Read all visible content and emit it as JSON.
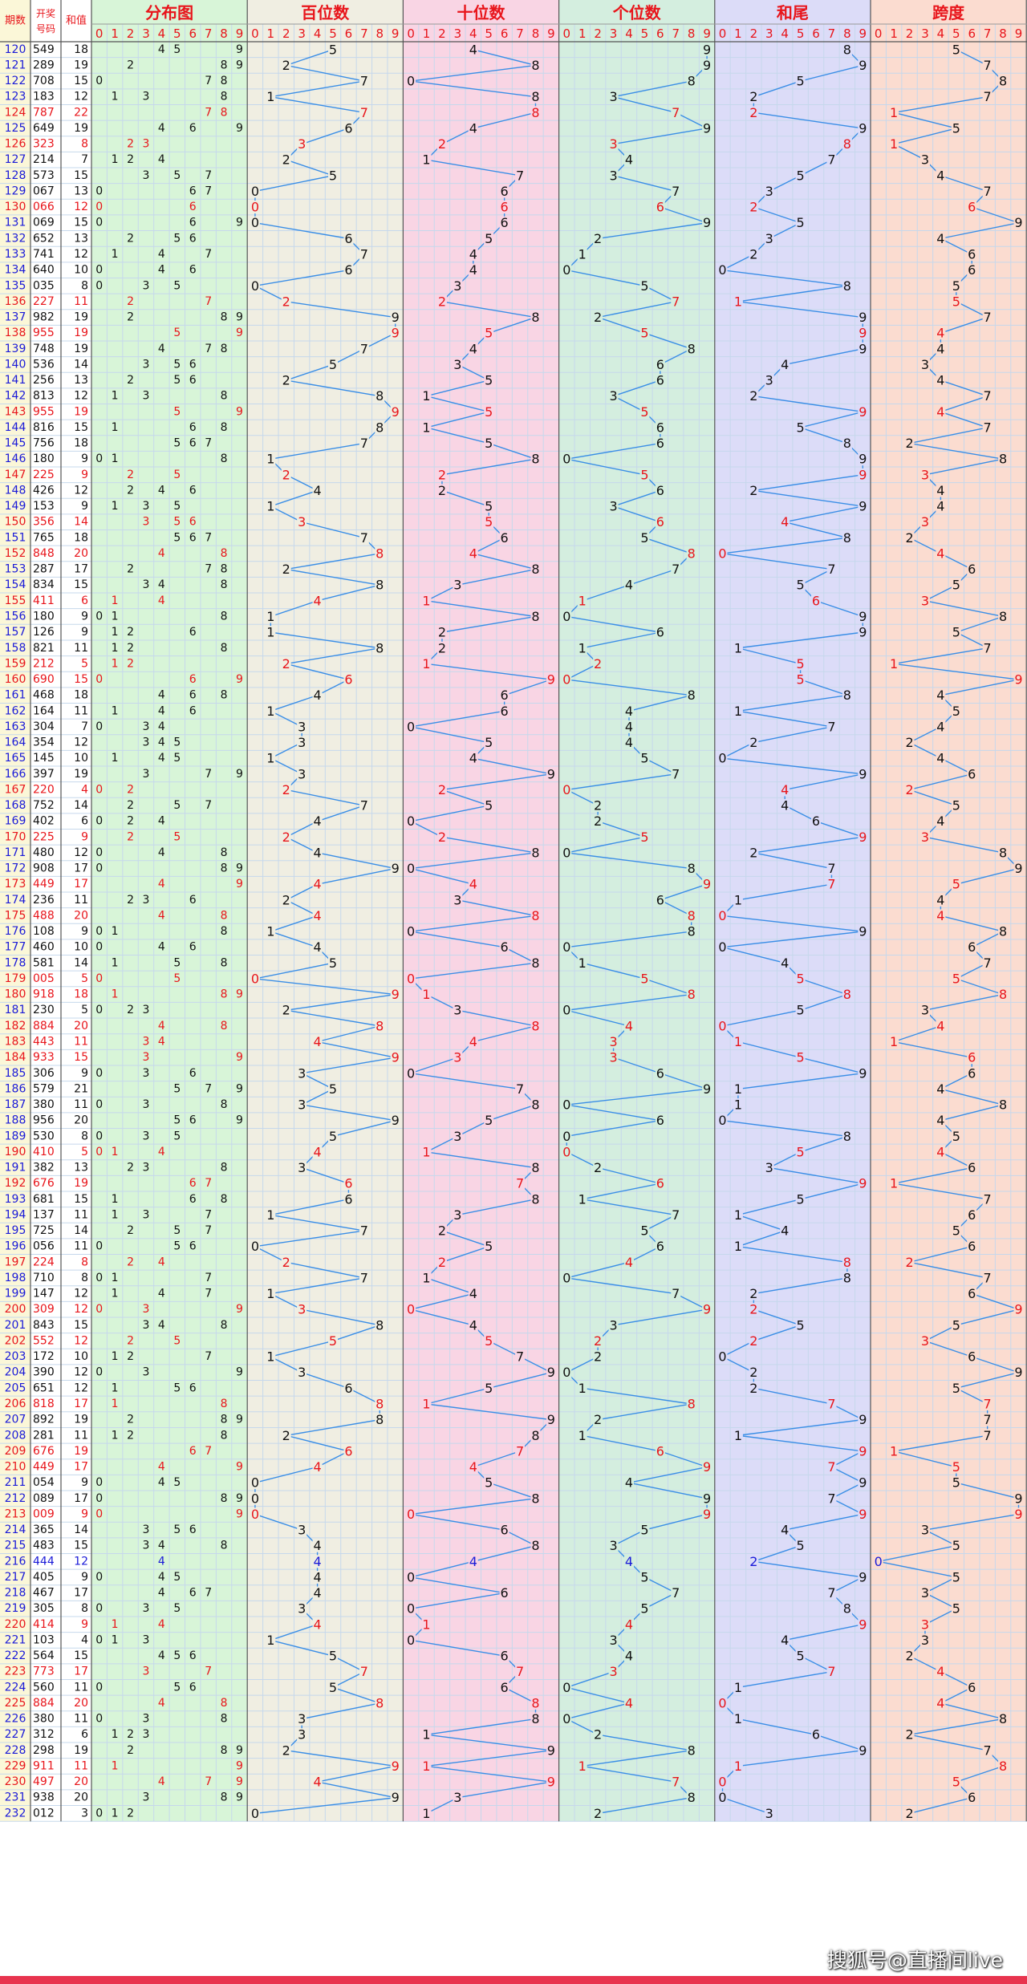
{
  "header": {
    "col_period": "期数",
    "col_number": "开奖号码",
    "col_sum": "和值",
    "sections": [
      "分布图",
      "百位数",
      "十位数",
      "个位数",
      "和尾",
      "跨度"
    ],
    "digits": [
      "0",
      "1",
      "2",
      "3",
      "4",
      "5",
      "6",
      "7",
      "8",
      "9"
    ]
  },
  "watermark": "搜狐号@直播间live",
  "colors": {
    "red": "#e8151b",
    "blue": "#1a1ad8",
    "line": "#3a8ee6",
    "dist_bg": "#d8f5d8",
    "hundreds_bg": "#f0eee2",
    "tens_bg": "#f9d5e4",
    "units_bg": "#d4eedf",
    "sumtail_bg": "#dcdcf8",
    "span_bg": "#fbdcd0",
    "period_bg": "#fbf7d8",
    "grid": "#c6d8ec",
    "bottom_bar": "#e8344e"
  },
  "chart_data": {
    "type": "table",
    "periods": [
      120,
      121,
      122,
      123,
      124,
      125,
      126,
      127,
      128,
      129,
      130,
      131,
      132,
      133,
      134,
      135,
      136,
      137,
      138,
      139,
      140,
      141,
      142,
      143,
      144,
      145,
      146,
      147,
      148,
      149,
      150,
      151,
      152,
      153,
      154,
      155,
      156,
      157,
      158,
      159,
      160,
      161,
      162,
      163,
      164,
      165,
      166,
      167,
      168,
      169,
      170,
      171,
      172,
      173,
      174,
      175,
      176,
      177,
      178,
      179,
      180,
      181,
      182,
      183,
      184,
      185,
      186,
      187,
      188,
      189,
      190,
      191,
      192,
      193,
      194,
      195,
      196,
      197,
      198,
      199,
      200,
      201,
      202,
      203,
      204,
      205,
      206,
      207,
      208,
      209,
      210,
      211,
      212,
      213,
      214,
      215,
      216,
      217,
      218,
      219,
      220,
      221,
      222,
      223,
      224,
      225,
      226,
      227,
      228,
      229,
      230,
      231,
      232
    ],
    "numbers": [
      "549",
      "289",
      "708",
      "183",
      "787",
      "649",
      "323",
      "214",
      "573",
      "067",
      "066",
      "069",
      "652",
      "741",
      "640",
      "035",
      "227",
      "982",
      "955",
      "748",
      "536",
      "256",
      "813",
      "955",
      "816",
      "756",
      "180",
      "225",
      "426",
      "153",
      "356",
      "765",
      "848",
      "287",
      "834",
      "411",
      "180",
      "126",
      "821",
      "212",
      "690",
      "468",
      "164",
      "304",
      "354",
      "145",
      "397",
      "220",
      "752",
      "402",
      "225",
      "480",
      "908",
      "449",
      "236",
      "488",
      "108",
      "460",
      "581",
      "005",
      "918",
      "230",
      "884",
      "443",
      "933",
      "306",
      "579",
      "380",
      "956",
      "530",
      "410",
      "382",
      "676",
      "681",
      "137",
      "725",
      "056",
      "224",
      "710",
      "147",
      "309",
      "843",
      "552",
      "172",
      "390",
      "651",
      "818",
      "892",
      "281",
      "676",
      "449",
      "054",
      "089",
      "009",
      "365",
      "483",
      "444",
      "405",
      "467",
      "305",
      "414",
      "103",
      "564",
      "773",
      "560",
      "884",
      "380",
      "312",
      "298",
      "911",
      "497",
      "938",
      "012"
    ],
    "sums": [
      18,
      19,
      15,
      12,
      22,
      19,
      8,
      7,
      15,
      13,
      12,
      15,
      13,
      12,
      10,
      8,
      11,
      19,
      19,
      19,
      14,
      13,
      12,
      19,
      15,
      18,
      9,
      9,
      12,
      9,
      14,
      18,
      20,
      17,
      15,
      6,
      9,
      9,
      11,
      5,
      15,
      18,
      11,
      7,
      12,
      10,
      19,
      4,
      14,
      6,
      9,
      12,
      17,
      17,
      11,
      20,
      9,
      10,
      14,
      5,
      18,
      5,
      20,
      11,
      15,
      9,
      21,
      11,
      20,
      8,
      5,
      13,
      19,
      15,
      11,
      14,
      11,
      8,
      8,
      12,
      12,
      15,
      12,
      10,
      12,
      12,
      17,
      19,
      11,
      19,
      17,
      9,
      17,
      9,
      14,
      15,
      12,
      9,
      17,
      8,
      9,
      4,
      15,
      17,
      11,
      20,
      11,
      6,
      19,
      11,
      20,
      20,
      3
    ],
    "red_rows": [
      124,
      126,
      130,
      136,
      138,
      143,
      147,
      150,
      152,
      155,
      159,
      160,
      167,
      170,
      173,
      175,
      179,
      180,
      182,
      183,
      184,
      190,
      192,
      197,
      200,
      202,
      206,
      209,
      210,
      213,
      220,
      223,
      225,
      229,
      230
    ],
    "blue_rows": [
      216
    ]
  }
}
